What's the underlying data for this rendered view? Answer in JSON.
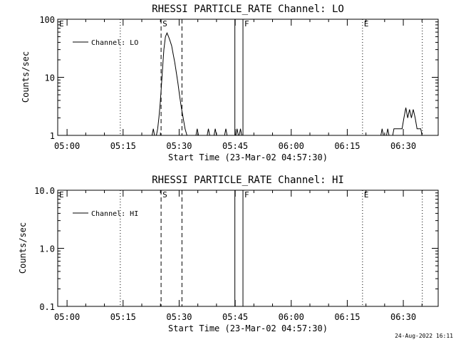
{
  "colors": {
    "background": "#ffffff",
    "ink": "#000000"
  },
  "timestamp": "24-Aug-2022 16:11",
  "chart_data": [
    {
      "type": "line",
      "title": "RHESSI PARTICLE_RATE Channel: LO",
      "xlabel": "Start Time (23-Mar-02 04:57:30)",
      "ylabel": "Counts/sec",
      "xlim": [
        "04:57:30",
        "06:39:20"
      ],
      "yscale": "log",
      "ylim": [
        1,
        100
      ],
      "x_ticks": [
        "05:00",
        "05:15",
        "05:30",
        "05:45",
        "06:00",
        "06:15",
        "06:30"
      ],
      "y_ticks": [
        "1",
        "10",
        "100"
      ],
      "legend": {
        "position": "top-left",
        "entries": [
          "Channel: LO"
        ]
      },
      "grid": false,
      "markers": [
        {
          "label": "E",
          "time": "04:57:30",
          "style": "dotted"
        },
        {
          "label": "",
          "time": "05:14:15",
          "style": "dotted"
        },
        {
          "label": "S",
          "time": "05:25:10",
          "style": "dashed"
        },
        {
          "label": "",
          "time": "05:30:45",
          "style": "dashed"
        },
        {
          "label": "",
          "time": "05:44:55",
          "style": "solid"
        },
        {
          "label": "F",
          "time": "05:47:05",
          "style": "solid"
        },
        {
          "label": "E",
          "time": "06:19:05",
          "style": "dotted"
        },
        {
          "label": "",
          "time": "06:35:05",
          "style": "dotted"
        }
      ],
      "series": [
        {
          "name": "Channel: LO",
          "points": [
            [
              "05:22:45",
              1
            ],
            [
              "05:23:05",
              1.3
            ],
            [
              "05:23:25",
              1
            ],
            [
              "05:23:55",
              1
            ],
            [
              "05:24:15",
              1.3
            ],
            [
              "05:24:35",
              2
            ],
            [
              "05:24:55",
              3.5
            ],
            [
              "05:25:15",
              7
            ],
            [
              "05:25:35",
              15
            ],
            [
              "05:25:55",
              30
            ],
            [
              "05:26:20",
              50
            ],
            [
              "05:26:45",
              58
            ],
            [
              "05:27:10",
              50
            ],
            [
              "05:27:35",
              42
            ],
            [
              "05:28:00",
              35
            ],
            [
              "05:28:25",
              25
            ],
            [
              "05:28:50",
              18
            ],
            [
              "05:29:15",
              12
            ],
            [
              "05:29:40",
              8
            ],
            [
              "05:30:05",
              5
            ],
            [
              "05:30:35",
              3
            ],
            [
              "05:31:05",
              2
            ],
            [
              "05:31:35",
              1.3
            ],
            [
              "05:32:05",
              1
            ],
            [
              "05:34:30",
              1
            ],
            [
              "05:34:50",
              1.3
            ],
            [
              "05:35:10",
              1
            ],
            [
              "05:37:30",
              1
            ],
            [
              "05:37:50",
              1.3
            ],
            [
              "05:38:10",
              1
            ],
            [
              "05:39:20",
              1
            ],
            [
              "05:39:40",
              1.3
            ],
            [
              "05:40:00",
              1
            ],
            [
              "05:42:10",
              1
            ],
            [
              "05:42:30",
              1.3
            ],
            [
              "05:42:50",
              1
            ],
            [
              "05:45:10",
              1
            ],
            [
              "05:45:30",
              1.3
            ],
            [
              "05:45:50",
              1
            ],
            [
              "05:46:05",
              1
            ],
            [
              "05:46:25",
              1.3
            ],
            [
              "05:46:45",
              1
            ],
            [
              "06:24:00",
              1
            ],
            [
              "06:24:20",
              1.3
            ],
            [
              "06:24:40",
              1
            ],
            [
              "06:25:30",
              1
            ],
            [
              "06:25:50",
              1.3
            ],
            [
              "06:26:10",
              1
            ],
            [
              "06:27:10",
              1
            ],
            [
              "06:27:30",
              1.3
            ],
            [
              "06:27:50",
              1.3
            ],
            [
              "06:29:40",
              1.3
            ],
            [
              "06:30:10",
              2
            ],
            [
              "06:30:40",
              3
            ],
            [
              "06:31:10",
              2
            ],
            [
              "06:31:40",
              2.8
            ],
            [
              "06:32:10",
              2
            ],
            [
              "06:32:40",
              2.8
            ],
            [
              "06:33:10",
              2
            ],
            [
              "06:33:40",
              1.3
            ],
            [
              "06:34:40",
              1.3
            ],
            [
              "06:35:00",
              1
            ]
          ]
        }
      ]
    },
    {
      "type": "line",
      "title": "RHESSI PARTICLE_RATE Channel: HI",
      "xlabel": "Start Time (23-Mar-02 04:57:30)",
      "ylabel": "Counts/sec",
      "xlim": [
        "04:57:30",
        "06:39:20"
      ],
      "yscale": "log",
      "ylim": [
        0.1,
        10
      ],
      "x_ticks": [
        "05:00",
        "05:15",
        "05:30",
        "05:45",
        "06:00",
        "06:15",
        "06:30"
      ],
      "y_ticks": [
        "0.1",
        "1.0",
        "10.0"
      ],
      "legend": {
        "position": "top-left",
        "entries": [
          "Channel: HI"
        ]
      },
      "grid": false,
      "markers": [
        {
          "label": "E",
          "time": "04:57:30",
          "style": "dotted"
        },
        {
          "label": "",
          "time": "05:14:15",
          "style": "dotted"
        },
        {
          "label": "S",
          "time": "05:25:10",
          "style": "dashed"
        },
        {
          "label": "",
          "time": "05:30:45",
          "style": "dashed"
        },
        {
          "label": "",
          "time": "05:44:55",
          "style": "solid"
        },
        {
          "label": "F",
          "time": "05:47:05",
          "style": "solid"
        },
        {
          "label": "E",
          "time": "06:19:05",
          "style": "dotted"
        },
        {
          "label": "",
          "time": "06:35:05",
          "style": "dotted"
        }
      ],
      "series": [
        {
          "name": "Channel: HI",
          "points": []
        }
      ]
    }
  ]
}
